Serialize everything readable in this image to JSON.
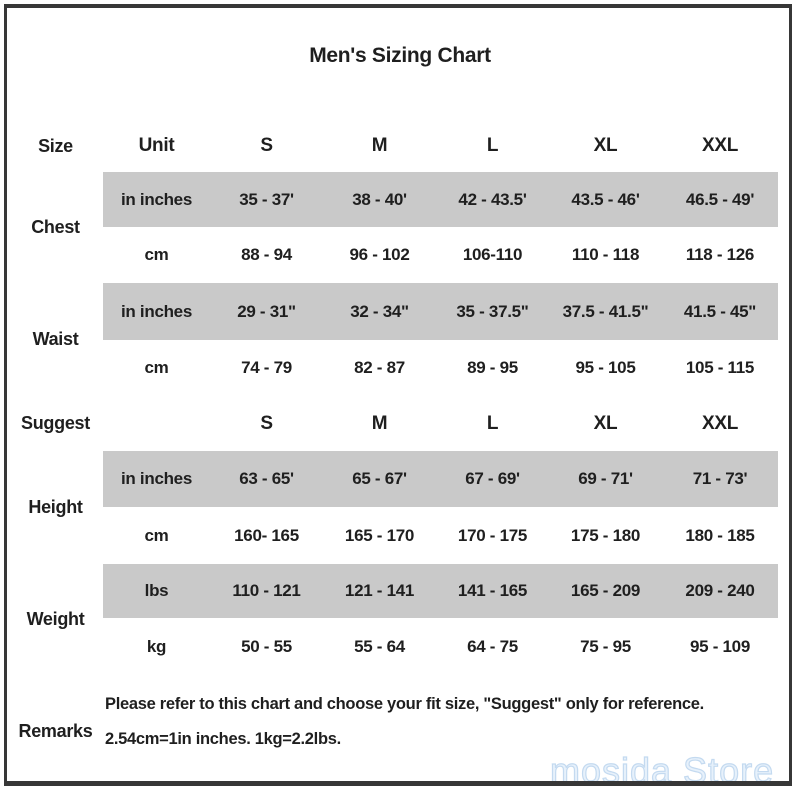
{
  "title": "Men's Sizing Chart",
  "watermark": "mosida Store",
  "colors": {
    "shaded_band": "#c9c9c9",
    "border": "#373737",
    "text": "#1f1f1f",
    "watermark_fill": "#e7f1fb",
    "watermark_stroke": "#c4daf0"
  },
  "table": {
    "columns": [
      "Size",
      "Unit",
      "S",
      "M",
      "L",
      "XL",
      "XXL"
    ],
    "sections": [
      {
        "label": "Chest",
        "rows": [
          {
            "unit": "in inches",
            "shaded": true,
            "values": [
              "35 - 37'",
              "38 - 40'",
              "42 - 43.5'",
              "43.5 - 46'",
              "46.5 - 49'"
            ]
          },
          {
            "unit": "cm",
            "shaded": false,
            "values": [
              "88 - 94",
              "96 - 102",
              "106-110",
              "110 - 118",
              "118 - 126"
            ]
          }
        ]
      },
      {
        "label": "Waist",
        "rows": [
          {
            "unit": "in inches",
            "shaded": true,
            "values": [
              "29 - 31\"",
              "32 - 34\"",
              "35 - 37.5\"",
              "37.5 - 41.5\"",
              "41.5 - 45\""
            ]
          },
          {
            "unit": "cm",
            "shaded": false,
            "values": [
              "74 - 79",
              "82 - 87",
              "89 - 95",
              "95 - 105",
              "105 - 115"
            ]
          }
        ]
      },
      {
        "label": "Suggest",
        "rows": [
          {
            "unit": "",
            "shaded": false,
            "values": [
              "S",
              "M",
              "L",
              "XL",
              "XXL"
            ]
          }
        ]
      },
      {
        "label": "Height",
        "rows": [
          {
            "unit": "in inches",
            "shaded": true,
            "values": [
              "63 - 65'",
              "65 - 67'",
              "67 - 69'",
              "69 - 71'",
              "71 - 73'"
            ]
          },
          {
            "unit": "cm",
            "shaded": false,
            "values": [
              "160- 165",
              "165 - 170",
              "170 - 175",
              "175 - 180",
              "180 - 185"
            ]
          }
        ]
      },
      {
        "label": "Weight",
        "rows": [
          {
            "unit": "lbs",
            "shaded": true,
            "values": [
              "110 - 121",
              "121 - 141",
              "141 - 165",
              "165 - 209",
              "209 - 240"
            ]
          },
          {
            "unit": "kg",
            "shaded": false,
            "values": [
              "50 - 55",
              "55 - 64",
              "64 - 75",
              "75 - 95",
              "95 - 109"
            ]
          }
        ]
      }
    ],
    "remarks": {
      "label": "Remarks",
      "lines": [
        "Please refer to this chart and choose your fit size, \"Suggest\" only for reference.",
        "2.54cm=1in inches. 1kg=2.2lbs."
      ]
    }
  },
  "chart_data": {
    "type": "table",
    "title": "Men's Sizing Chart",
    "columns": [
      "Size",
      "Unit",
      "S",
      "M",
      "L",
      "XL",
      "XXL"
    ],
    "rows": [
      [
        "Chest",
        "in inches",
        "35 - 37'",
        "38 - 40'",
        "42 - 43.5'",
        "43.5 - 46'",
        "46.5 - 49'"
      ],
      [
        "Chest",
        "cm",
        "88 - 94",
        "96 - 102",
        "106-110",
        "110 - 118",
        "118 - 126"
      ],
      [
        "Waist",
        "in inches",
        "29 - 31\"",
        "32 - 34\"",
        "35 - 37.5\"",
        "37.5 - 41.5\"",
        "41.5 - 45\""
      ],
      [
        "Waist",
        "cm",
        "74 - 79",
        "82 - 87",
        "89 - 95",
        "95 - 105",
        "105 - 115"
      ],
      [
        "Suggest",
        "",
        "S",
        "M",
        "L",
        "XL",
        "XXL"
      ],
      [
        "Height",
        "in inches",
        "63 - 65'",
        "65 - 67'",
        "67 - 69'",
        "69 - 71'",
        "71 - 73'"
      ],
      [
        "Height",
        "cm",
        "160- 165",
        "165 - 170",
        "170 - 175",
        "175 - 180",
        "180 - 185"
      ],
      [
        "Weight",
        "lbs",
        "110 - 121",
        "121 - 141",
        "141 - 165",
        "165 - 209",
        "209 - 240"
      ],
      [
        "Weight",
        "kg",
        "50 - 55",
        "55 - 64",
        "64 - 75",
        "75 - 95",
        "95 - 109"
      ]
    ]
  }
}
